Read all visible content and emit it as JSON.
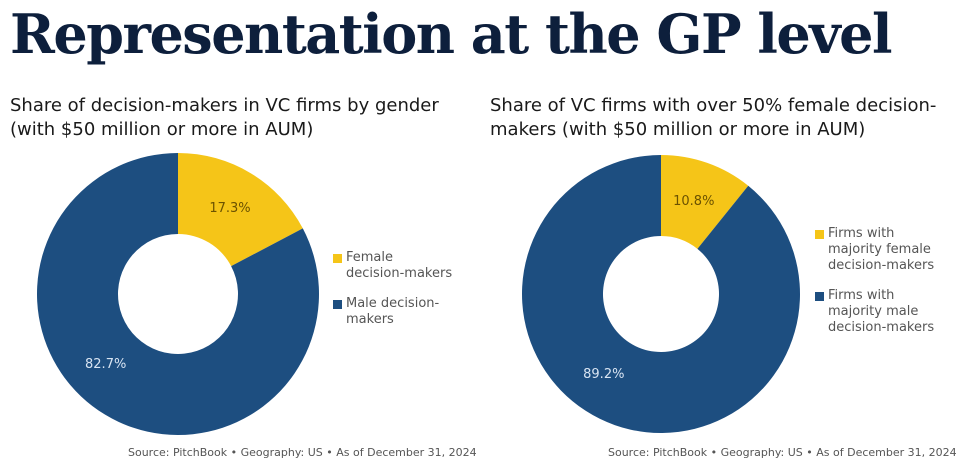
{
  "title": "Representation at the GP level",
  "colors": {
    "female": "#f5c518",
    "male": "#1d4e80",
    "title": "#0d1f3c"
  },
  "chart_data": [
    {
      "type": "pie",
      "donut": true,
      "title": "Share of decision-makers in VC firms by gender (with $50 million or more in AUM)",
      "categories": [
        "Female decision-makers",
        "Male decision-makers"
      ],
      "values": [
        17.3,
        82.7
      ],
      "labels": [
        "17.3%",
        "82.7%"
      ],
      "legend_position": "right",
      "source": "Source: PitchBook  •  Geography: US  •  As of December 31, 2024"
    },
    {
      "type": "pie",
      "donut": true,
      "title": "Share of VC firms with over 50% female decision-makers (with $50 million or more in AUM)",
      "categories": [
        "Firms with majority female decision-makers",
        "Firms with majority male decision-makers"
      ],
      "values": [
        10.8,
        89.2
      ],
      "labels": [
        "10.8%",
        "89.2%"
      ],
      "legend_position": "right",
      "source": "Source: PitchBook  •  Geography: US  •  As of December 31, 2024"
    }
  ]
}
